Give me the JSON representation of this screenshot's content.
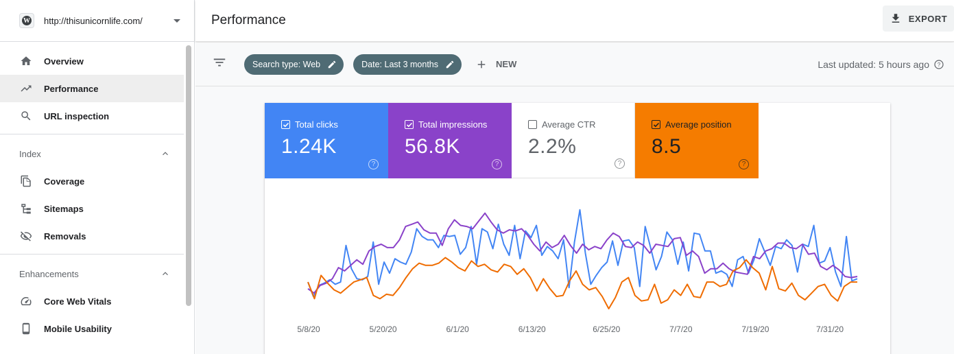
{
  "property": {
    "url": "http://thisunicornlife.com/",
    "logo_letter": "W"
  },
  "sidebar": {
    "items": [
      {
        "label": "Overview",
        "icon": "home-icon"
      },
      {
        "label": "Performance",
        "icon": "trending-up-icon",
        "active": true
      },
      {
        "label": "URL inspection",
        "icon": "search-icon"
      }
    ],
    "sections": [
      {
        "title": "Index",
        "items": [
          {
            "label": "Coverage",
            "icon": "copy-icon"
          },
          {
            "label": "Sitemaps",
            "icon": "sitemap-icon"
          },
          {
            "label": "Removals",
            "icon": "eye-off-icon"
          }
        ]
      },
      {
        "title": "Enhancements",
        "items": [
          {
            "label": "Core Web Vitals",
            "icon": "speedometer-icon"
          },
          {
            "label": "Mobile Usability",
            "icon": "phone-icon"
          }
        ]
      }
    ]
  },
  "header": {
    "title": "Performance",
    "export_label": "EXPORT"
  },
  "filters": {
    "chips": [
      "Search type: Web",
      "Date: Last 3 months"
    ],
    "new_label": "NEW",
    "last_updated": "Last updated: 5 hours ago"
  },
  "metrics": [
    {
      "label": "Total clicks",
      "value": "1.24K",
      "checked": true,
      "color": "#4285f4"
    },
    {
      "label": "Total impressions",
      "value": "56.8K",
      "checked": true,
      "color": "#8a42c9"
    },
    {
      "label": "Average CTR",
      "value": "2.2%",
      "checked": false,
      "color": "#ffffff"
    },
    {
      "label": "Average position",
      "value": "8.5",
      "checked": true,
      "color": "#f57c00"
    }
  ],
  "chart_data": {
    "type": "line",
    "x_tick_labels": [
      "5/8/20",
      "5/20/20",
      "6/1/20",
      "6/13/20",
      "6/25/20",
      "7/7/20",
      "7/19/20",
      "7/31/20"
    ],
    "series": [
      {
        "color": "#4285f4",
        "values": [
          24,
          11,
          21,
          23,
          26,
          22,
          24,
          57,
          36,
          27,
          26,
          29,
          60,
          22,
          42,
          32,
          45,
          42,
          40,
          51,
          72,
          65,
          62,
          62,
          55,
          66,
          65,
          66,
          49,
          55,
          74,
          40,
          72,
          69,
          54,
          76,
          58,
          48,
          75,
          45,
          70,
          64,
          75,
          48,
          56,
          52,
          45,
          62,
          19,
          60,
          89,
          50,
          22,
          30,
          37,
          42,
          61,
          39,
          61,
          62,
          55,
          20,
          74,
          55,
          35,
          47,
          69,
          62,
          40,
          60,
          34,
          68,
          67,
          52,
          52,
          32,
          34,
          31,
          20,
          44,
          47,
          32,
          44,
          63,
          51,
          39,
          56,
          54,
          62,
          57,
          33,
          58,
          56,
          75,
          41,
          43,
          55,
          33,
          20,
          65,
          25,
          27
        ]
      },
      {
        "color": "#8a42c9",
        "values": [
          18,
          14,
          21,
          23,
          27,
          37,
          34,
          39,
          44,
          40,
          52,
          56,
          58,
          55,
          55,
          62,
          74,
          76,
          78,
          71,
          68,
          68,
          57,
          72,
          80,
          75,
          74,
          72,
          79,
          86,
          78,
          71,
          68,
          71,
          70,
          72,
          66,
          58,
          52,
          60,
          55,
          58,
          66,
          57,
          50,
          58,
          53,
          56,
          54,
          62,
          68,
          65,
          56,
          55,
          60,
          57,
          50,
          58,
          57,
          56,
          63,
          64,
          48,
          52,
          47,
          32,
          36,
          36,
          41,
          36,
          33,
          32,
          31,
          47,
          45,
          52,
          54,
          59,
          59,
          55,
          54,
          58,
          49,
          50,
          38,
          35,
          39,
          35,
          29,
          28,
          29
        ]
      },
      {
        "color": "#ef6c00",
        "values": [
          24,
          9,
          30,
          23,
          17,
          14,
          19,
          24,
          26,
          28,
          12,
          9,
          13,
          12,
          19,
          28,
          36,
          41,
          39,
          39,
          41,
          46,
          42,
          37,
          34,
          43,
          38,
          40,
          35,
          33,
          40,
          38,
          31,
          36,
          28,
          16,
          27,
          18,
          11,
          12,
          25,
          34,
          22,
          17,
          19,
          11,
          0,
          10,
          24,
          28,
          12,
          7,
          8,
          22,
          5,
          8,
          17,
          12,
          22,
          11,
          10,
          24,
          24,
          20,
          22,
          34,
          37,
          44,
          37,
          32,
          17,
          38,
          18,
          16,
          23,
          12,
          8,
          14,
          20,
          22,
          12,
          7,
          20,
          24,
          24
        ]
      }
    ]
  }
}
